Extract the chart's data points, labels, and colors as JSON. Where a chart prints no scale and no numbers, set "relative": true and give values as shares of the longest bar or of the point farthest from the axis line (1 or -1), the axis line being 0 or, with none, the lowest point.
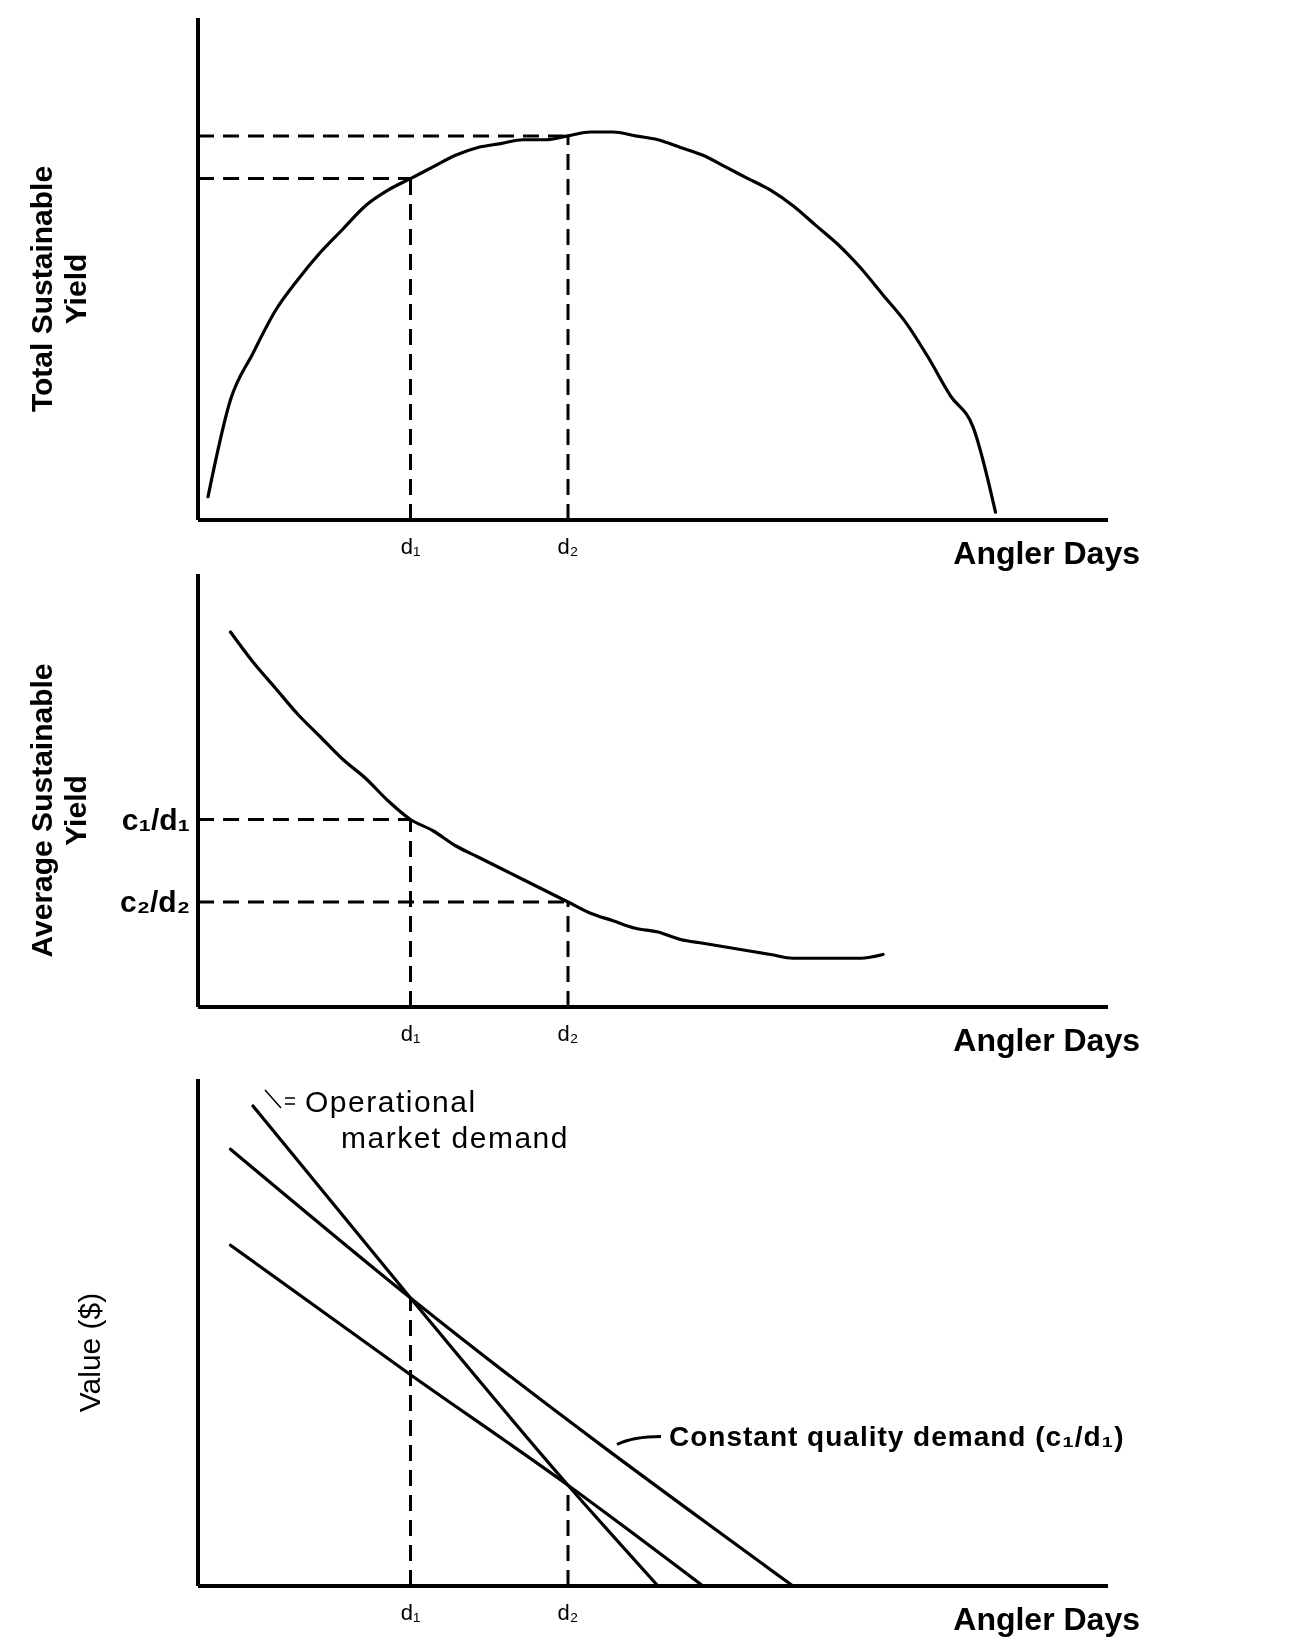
{
  "chart_data": [
    {
      "type": "line",
      "relative": true,
      "xlabel": "Angler Days",
      "ylabel": "Total Sustainable Yield",
      "categories": [
        null,
        null,
        null,
        null,
        null,
        null,
        null,
        null,
        null,
        "d₁",
        null,
        null,
        null,
        null,
        null,
        null,
        "d₂",
        null,
        null,
        null,
        null,
        null,
        null,
        null,
        null,
        null,
        null,
        null,
        null,
        null,
        null,
        null,
        null,
        null,
        null,
        null,
        null,
        null,
        null,
        null,
        null
      ],
      "series": [
        {
          "color": "#000000",
          "values": [
            0.06,
            0.31,
            0.43,
            0.54,
            0.62,
            0.69,
            0.75,
            0.81,
            0.85,
            0.88,
            0.91,
            0.94,
            0.96,
            0.97,
            0.98,
            0.98,
            0.99,
            1.0,
            1.0,
            0.99,
            0.98,
            0.96,
            0.94,
            0.91,
            0.88,
            0.85,
            0.81,
            0.76,
            0.71,
            0.65,
            0.58,
            0.51,
            0.42,
            0.32,
            0.24,
            0.02,
            null,
            null,
            null,
            null,
            null
          ]
        }
      ],
      "ref_lines": [
        {
          "axis": "x",
          "value": "d₁",
          "line_style": "dashed"
        },
        {
          "axis": "x",
          "value": "d₂",
          "line_style": "dashed"
        },
        {
          "axis": "y",
          "value": 0.88,
          "line_style": "dashed"
        },
        {
          "axis": "y",
          "value": 0.99,
          "line_style": "dashed"
        }
      ]
    },
    {
      "type": "line",
      "relative": true,
      "xlabel": "Angler Days",
      "ylabel": "Average Sustainable Yield",
      "categories": [
        null,
        null,
        null,
        null,
        null,
        null,
        null,
        null,
        null,
        "d₁",
        null,
        null,
        null,
        null,
        null,
        null,
        "d₂",
        null,
        null,
        null,
        null,
        null,
        null,
        null,
        null,
        null,
        null,
        null,
        null,
        null,
        null,
        null,
        null,
        null,
        null,
        null,
        null,
        null,
        null,
        null,
        null
      ],
      "series": [
        {
          "color": "#000000",
          "values": [
            null,
            1.0,
            0.92,
            0.85,
            0.78,
            0.72,
            0.66,
            0.61,
            0.55,
            0.5,
            0.47,
            0.43,
            0.4,
            0.37,
            0.34,
            0.31,
            0.28,
            0.25,
            0.23,
            0.21,
            0.2,
            0.18,
            0.17,
            0.16,
            0.15,
            0.14,
            0.13,
            0.13,
            0.13,
            0.13,
            0.14,
            null,
            null,
            null,
            null,
            null,
            null,
            null,
            null,
            null,
            null
          ]
        }
      ],
      "ref_lines": [
        {
          "axis": "x",
          "value": "d₁",
          "line_style": "dashed"
        },
        {
          "axis": "x",
          "value": "d₂",
          "line_style": "dashed"
        },
        {
          "axis": "y",
          "value": 0.5,
          "label": "c₁/d₁",
          "line_style": "dashed"
        },
        {
          "axis": "y",
          "value": 0.28,
          "label": "c₂/d₂",
          "line_style": "dashed"
        }
      ]
    },
    {
      "type": "line",
      "relative": true,
      "legend": "right",
      "xlabel": "Angler Days",
      "ylabel": "Value ($)",
      "categories": [
        null,
        null,
        null,
        null,
        null,
        null,
        null,
        null,
        null,
        "d₁",
        null,
        null,
        null,
        null,
        null,
        null,
        "d₂",
        null,
        null,
        null,
        null,
        null,
        null,
        null,
        null,
        null,
        null,
        null,
        null,
        null,
        null,
        null,
        null,
        null,
        null,
        null,
        null,
        null,
        null,
        null,
        null
      ],
      "series": [
        {
          "name": "Operational market demand",
          "color": "#000000",
          "values": [
            null,
            null,
            1.0,
            null,
            null,
            null,
            null,
            null,
            null,
            0.6,
            null,
            null,
            null,
            null,
            null,
            null,
            0.21,
            null,
            null,
            null,
            0,
            null,
            null,
            null,
            null,
            null,
            null,
            null,
            null,
            null,
            null,
            null,
            null,
            null,
            null,
            null,
            null,
            null,
            null,
            null,
            null
          ]
        },
        {
          "name": "Constant quality demand (c₁/d₁)",
          "color": "#000000",
          "values": [
            null,
            0.91,
            null,
            null,
            null,
            null,
            null,
            null,
            null,
            0.6,
            null,
            null,
            null,
            null,
            null,
            null,
            null,
            null,
            null,
            null,
            null,
            null,
            null,
            null,
            null,
            null,
            0,
            null,
            null,
            null,
            null,
            null,
            null,
            null,
            null,
            null,
            null,
            null,
            null,
            null,
            null
          ]
        },
        {
          "color": "#000000",
          "values": [
            null,
            0.71,
            null,
            null,
            null,
            null,
            null,
            null,
            null,
            0.44,
            null,
            null,
            null,
            null,
            null,
            null,
            0.21,
            null,
            null,
            null,
            null,
            null,
            0,
            null,
            null,
            null,
            null,
            null,
            null,
            null,
            null,
            null,
            null,
            null,
            null,
            null,
            null,
            null,
            null,
            null,
            null
          ]
        }
      ],
      "ref_lines": [
        {
          "axis": "x",
          "value": "d₁",
          "line_style": "dashed"
        },
        {
          "axis": "x",
          "value": "d₂",
          "line_style": "dashed"
        }
      ]
    }
  ]
}
